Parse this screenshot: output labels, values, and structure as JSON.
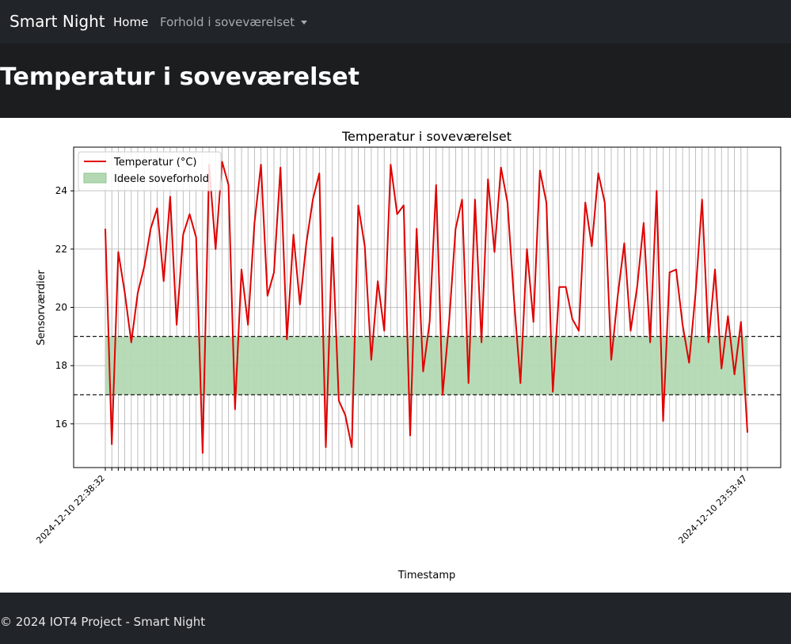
{
  "navbar": {
    "brand": "Smart Night",
    "home_label": "Home",
    "dropdown_label": "Forhold i soveværelset"
  },
  "page": {
    "title": "Temperatur i soveværelset"
  },
  "footer": {
    "text": "© 2024 IOT4 Project - Smart Night"
  },
  "colors": {
    "line": "#e00000",
    "band": "#b3d9b3",
    "grid": "#b0b0b0",
    "navbar": "#212529"
  },
  "chart_data": {
    "type": "line",
    "title": "Temperatur i soveværelset",
    "xlabel": "Timestamp",
    "ylabel": "Sensorværdier",
    "ylim": [
      14.5,
      25.5
    ],
    "yticks": [
      16,
      18,
      20,
      22,
      24
    ],
    "grid": true,
    "legend_position": "top-left",
    "x_first_label": "2024-12-10 22:38:32",
    "x_last_label": "2024-12-10 23:53:47",
    "series": [
      {
        "name": "Temperatur (°C)",
        "values": [
          22.7,
          15.3,
          21.9,
          20.5,
          18.8,
          20.5,
          21.4,
          22.7,
          23.4,
          20.9,
          23.8,
          19.4,
          22.5,
          23.2,
          22.4,
          15.0,
          24.9,
          22.0,
          25.0,
          24.2,
          16.5,
          21.3,
          19.4,
          22.9,
          24.9,
          20.4,
          21.2,
          24.8,
          18.9,
          22.5,
          20.1,
          22.2,
          23.7,
          24.6,
          15.2,
          22.4,
          16.8,
          16.3,
          15.2,
          23.5,
          22.1,
          18.2,
          20.9,
          19.2,
          24.9,
          23.2,
          23.5,
          15.6,
          22.7,
          17.8,
          19.5,
          24.2,
          17.0,
          19.5,
          22.7,
          23.7,
          17.4,
          23.7,
          18.8,
          24.4,
          21.9,
          24.8,
          23.6,
          20.3,
          17.4,
          22.0,
          19.5,
          24.7,
          23.6,
          17.1,
          20.7,
          20.7,
          19.6,
          19.2,
          23.6,
          22.1,
          24.6,
          23.6,
          18.2,
          20.4,
          22.2,
          19.2,
          20.7,
          22.9,
          18.8,
          24.0,
          16.1,
          21.2,
          21.3,
          19.4,
          18.1,
          20.5,
          23.7,
          18.8,
          21.3,
          17.9,
          19.7,
          17.7,
          19.5,
          15.7
        ]
      }
    ],
    "band": {
      "name": "Ideele soveforhold",
      "from": 17,
      "to": 19
    }
  }
}
